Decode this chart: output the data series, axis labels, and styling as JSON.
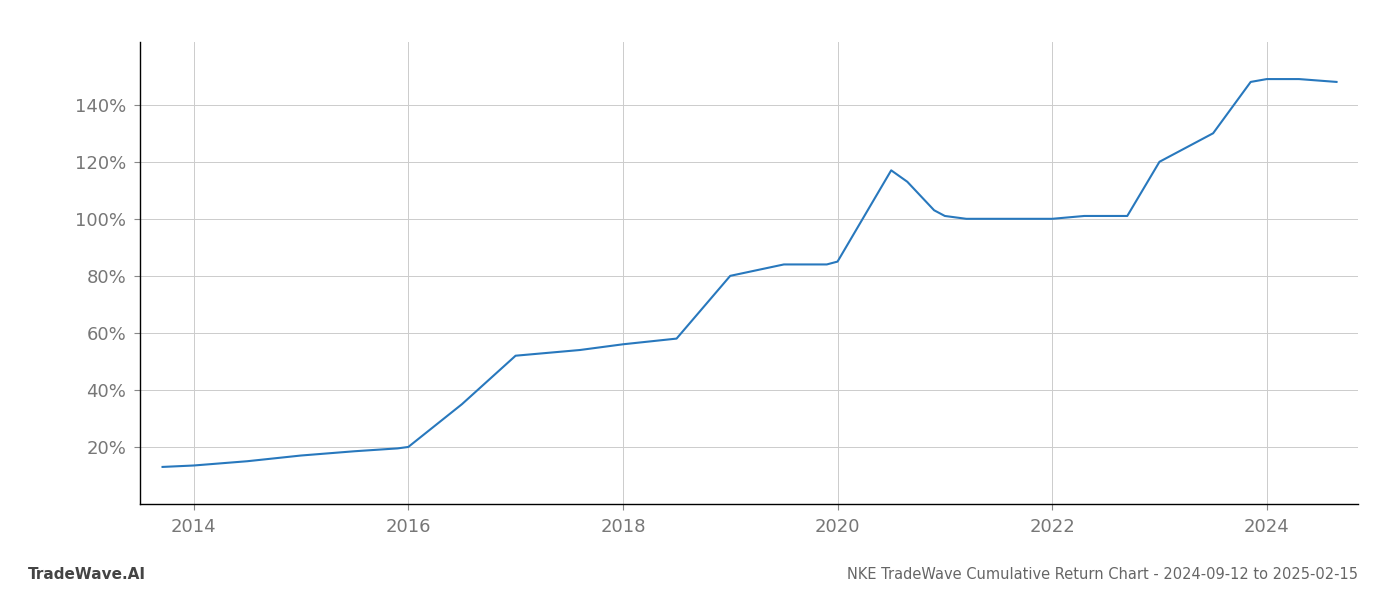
{
  "x_values": [
    2013.71,
    2014.0,
    2014.5,
    2015.0,
    2015.5,
    2015.9,
    2016.0,
    2016.5,
    2017.0,
    2017.3,
    2017.6,
    2018.0,
    2018.5,
    2019.0,
    2019.5,
    2019.9,
    2020.0,
    2020.5,
    2020.65,
    2020.9,
    2021.0,
    2021.2,
    2021.5,
    2022.0,
    2022.3,
    2022.7,
    2023.0,
    2023.5,
    2023.85,
    2024.0,
    2024.3,
    2024.65
  ],
  "y_values": [
    13,
    13.5,
    15,
    17,
    18.5,
    19.5,
    20,
    35,
    52,
    53,
    54,
    56,
    58,
    80,
    84,
    84,
    85,
    117,
    113,
    103,
    101,
    100,
    100,
    100,
    101,
    101,
    120,
    130,
    148,
    149,
    149,
    148
  ],
  "line_color": "#2878bd",
  "line_width": 1.5,
  "title": "NKE TradeWave Cumulative Return Chart - 2024-09-12 to 2025-02-15",
  "watermark": "TradeWave.AI",
  "yticks": [
    20,
    40,
    60,
    80,
    100,
    120,
    140
  ],
  "xticks": [
    2014,
    2016,
    2018,
    2020,
    2022,
    2024
  ],
  "xlim": [
    2013.5,
    2024.85
  ],
  "ylim": [
    0,
    162
  ],
  "grid_color": "#cccccc",
  "background_color": "#ffffff",
  "tick_color": "#777777",
  "title_color": "#666666",
  "watermark_color": "#444444",
  "title_fontsize": 10.5,
  "watermark_fontsize": 11,
  "spine_color": "#000000"
}
